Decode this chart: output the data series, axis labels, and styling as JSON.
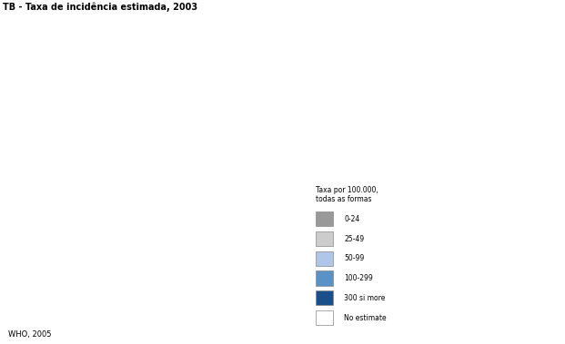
{
  "title": "TB - Taxa de incidência estimada, 2003",
  "source_text": "WHO, 2005",
  "legend_title": "Taxa por 100.000,\ntodas as formas",
  "legend_labels": [
    "0-24",
    "25-49",
    "50-99",
    "100-299",
    "300 si more",
    "No estimate"
  ],
  "legend_colors": [
    "#999999",
    "#cccccc",
    "#aec6e8",
    "#5b92c5",
    "#1a4f8a",
    "#ffffff"
  ],
  "background_color": "#ffffff",
  "color_map": {
    "0-24": "#999999",
    "25-49": "#cccccc",
    "50-99": "#aec6e8",
    "100-299": "#5b92c5",
    "300+": "#1a4f8a",
    "no_estimate": "#ffffff"
  },
  "figsize": [
    6.21,
    3.79
  ],
  "dpi": 100
}
